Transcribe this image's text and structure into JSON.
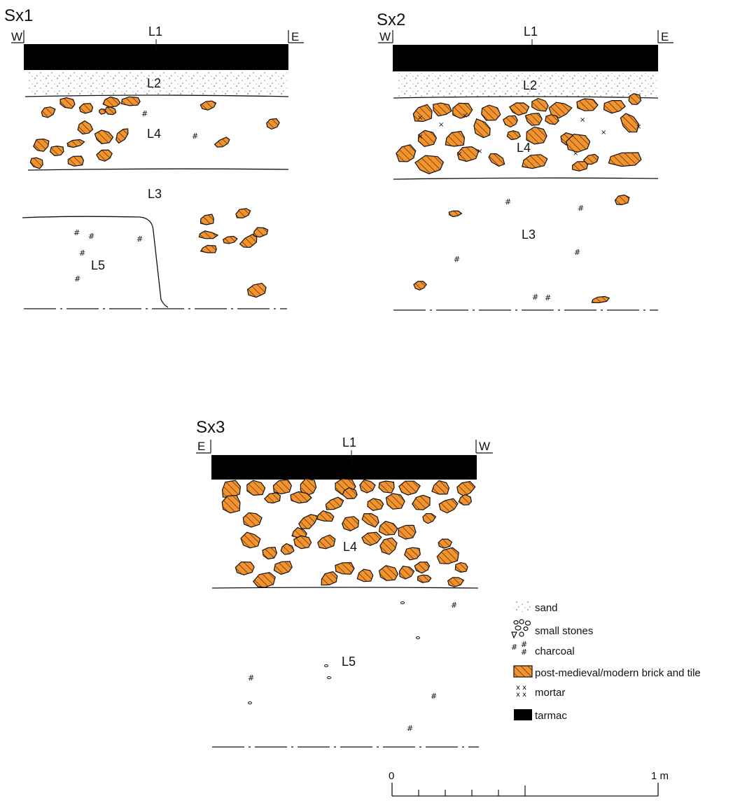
{
  "sections": [
    {
      "title": "Sx1",
      "left_dir": "W",
      "right_dir": "E",
      "layers": {
        "l1": "L1",
        "l2": "L2",
        "l4": "L4",
        "l3": "L3",
        "l5": "L5"
      }
    },
    {
      "title": "Sx2",
      "left_dir": "W",
      "right_dir": "E",
      "layers": {
        "l1": "L1",
        "l2": "L2",
        "l4": "L4",
        "l3": "L3"
      }
    },
    {
      "title": "Sx3",
      "left_dir": "E",
      "right_dir": "W",
      "layers": {
        "l1": "L1",
        "l4": "L4",
        "l5": "L5"
      }
    }
  ],
  "legend": {
    "items": [
      {
        "label": "sand",
        "icon": "sand-dots"
      },
      {
        "label": "small stones",
        "icon": "small-stones"
      },
      {
        "label": "charcoal",
        "icon": "charcoal-hash"
      },
      {
        "label": "post-medieval/modern brick and tile",
        "icon": "brick-hatch"
      },
      {
        "label": "mortar",
        "icon": "mortar-x"
      },
      {
        "label": "tarmac",
        "icon": "tarmac-block"
      }
    ]
  },
  "scale_bar": {
    "start_label": "0",
    "end_label": "1 m"
  },
  "colors": {
    "brick": "#f4922c",
    "tarmac": "#000000",
    "line": "#111111"
  }
}
